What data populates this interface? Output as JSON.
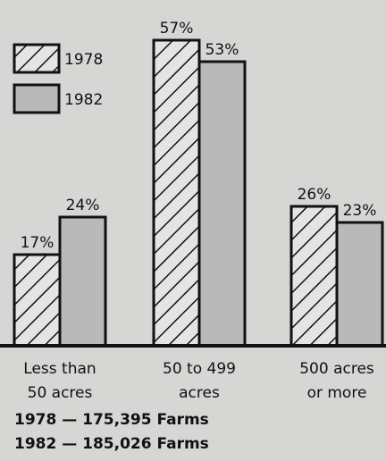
{
  "chart_data": {
    "type": "bar",
    "categories": [
      [
        "Less than",
        "50 acres"
      ],
      [
        "50 to 499",
        "acres"
      ],
      [
        "500 acres",
        "or more"
      ]
    ],
    "series": [
      {
        "name": "1978",
        "color": "#e4e4e4",
        "pattern": "hatch",
        "values": [
          17,
          57,
          26
        ],
        "value_labels": [
          "17%",
          "57%",
          "26%"
        ]
      },
      {
        "name": "1982",
        "color": "#b9b9b9",
        "pattern": "solid",
        "values": [
          24,
          53,
          23
        ],
        "value_labels": [
          "24%",
          "53%",
          "23%"
        ]
      }
    ],
    "notes": [
      "1978 — 175,395 Farms",
      "1982 — 185,026 Farms"
    ],
    "legend": "top-left"
  }
}
